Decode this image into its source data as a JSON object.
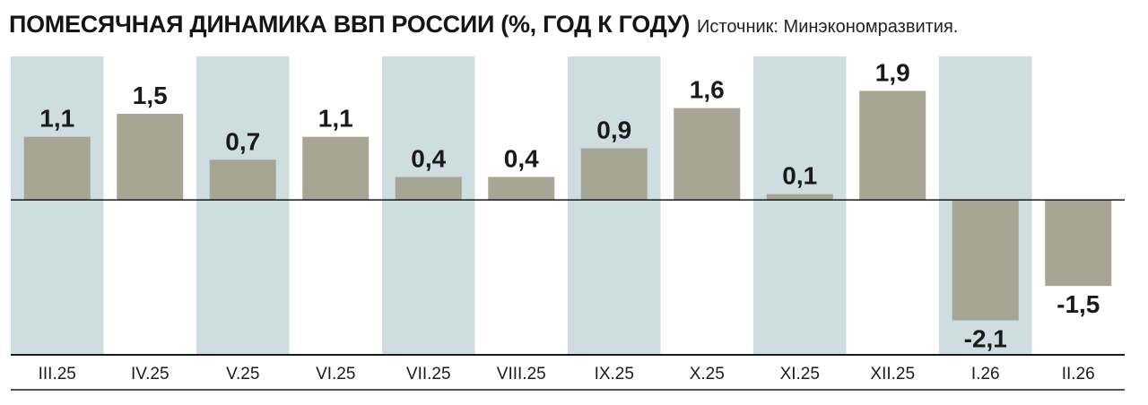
{
  "header": {
    "title": "ПОМЕСЯЧНАЯ ДИНАМИКА ВВП РОССИИ (%, ГОД К ГОДУ)",
    "source": "Источник: Минэкономразвития."
  },
  "colors": {
    "bar": "#a7a694",
    "shade": "#cddde0",
    "axis": "#1a1a1a",
    "text": "#1a1a1a"
  },
  "chart_data": {
    "type": "bar",
    "title": "ПОМЕСЯЧНАЯ ДИНАМИКА ВВП РОССИИ (%, ГОД К ГОДУ)",
    "categories": [
      "III.25",
      "IV.25",
      "V.25",
      "VI.25",
      "VII.25",
      "VIII.25",
      "IX.25",
      "X.25",
      "XI.25",
      "XII.25",
      "I.26",
      "II.26"
    ],
    "values": [
      1.1,
      1.5,
      0.7,
      1.1,
      0.4,
      0.4,
      0.9,
      1.6,
      0.1,
      1.9,
      -2.1,
      -1.5
    ],
    "value_labels": [
      "1,1",
      "1,5",
      "0,7",
      "1,1",
      "0,4",
      "0,4",
      "0,9",
      "1,6",
      "0,1",
      "1,9",
      "-2,1",
      "-1,5"
    ],
    "ylim": [
      -2.7,
      2.5
    ],
    "grid": false,
    "alternating_column_shading": true
  }
}
